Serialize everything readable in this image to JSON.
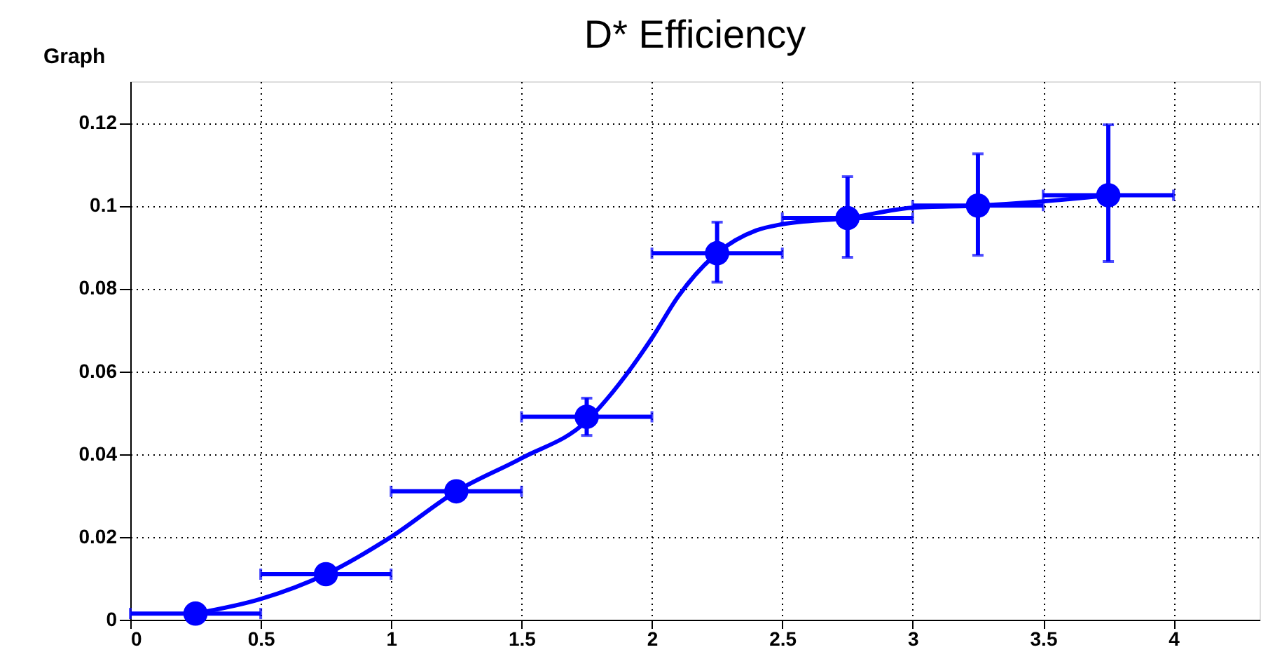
{
  "chart_data": {
    "type": "scatter",
    "title": "D* Efficiency",
    "annotations": [
      "Graph"
    ],
    "xlim": [
      0,
      4.33
    ],
    "xticks": [
      0,
      0.5,
      1,
      1.5,
      2,
      2.5,
      3,
      3.5,
      4
    ],
    "ylim": [
      0,
      0.13
    ],
    "yticks": [
      0,
      0.02,
      0.04,
      0.06,
      0.08,
      0.1,
      0.12
    ],
    "grid": true,
    "marker": "circle",
    "series": [
      {
        "color": "#0000ff",
        "x": [
          0.25,
          0.75,
          1.25,
          1.75,
          2.25,
          2.75,
          3.25,
          3.75
        ],
        "values": [
          0.0015,
          0.011,
          0.031,
          0.049,
          0.0885,
          0.097,
          0.1,
          0.1025
        ],
        "errors": [
          null,
          null,
          null,
          [
            0.0445,
            0.0535
          ],
          [
            0.0815,
            0.096
          ],
          [
            0.0875,
            0.107
          ],
          [
            0.088,
            0.1125
          ],
          [
            0.0865,
            0.1195
          ]
        ],
        "xerrors": [
          0.25,
          0.25,
          0.25,
          0.25,
          0.25,
          0.25,
          0.25,
          0.25
        ]
      },
      {
        "type": "line",
        "marker": "none",
        "color": "#0000ff",
        "x": [
          0.25,
          0.5,
          0.75,
          1.0,
          1.25,
          1.5,
          1.75,
          1.85,
          2.0,
          2.1,
          2.25,
          2.4,
          2.5,
          2.75,
          3.0,
          3.25,
          3.5,
          3.75
        ],
        "values": [
          0.0015,
          0.005,
          0.011,
          0.02,
          0.031,
          0.039,
          0.048,
          0.055,
          0.068,
          0.078,
          0.0885,
          0.094,
          0.0955,
          0.097,
          0.0995,
          0.1,
          0.101,
          0.1025
        ]
      }
    ]
  }
}
